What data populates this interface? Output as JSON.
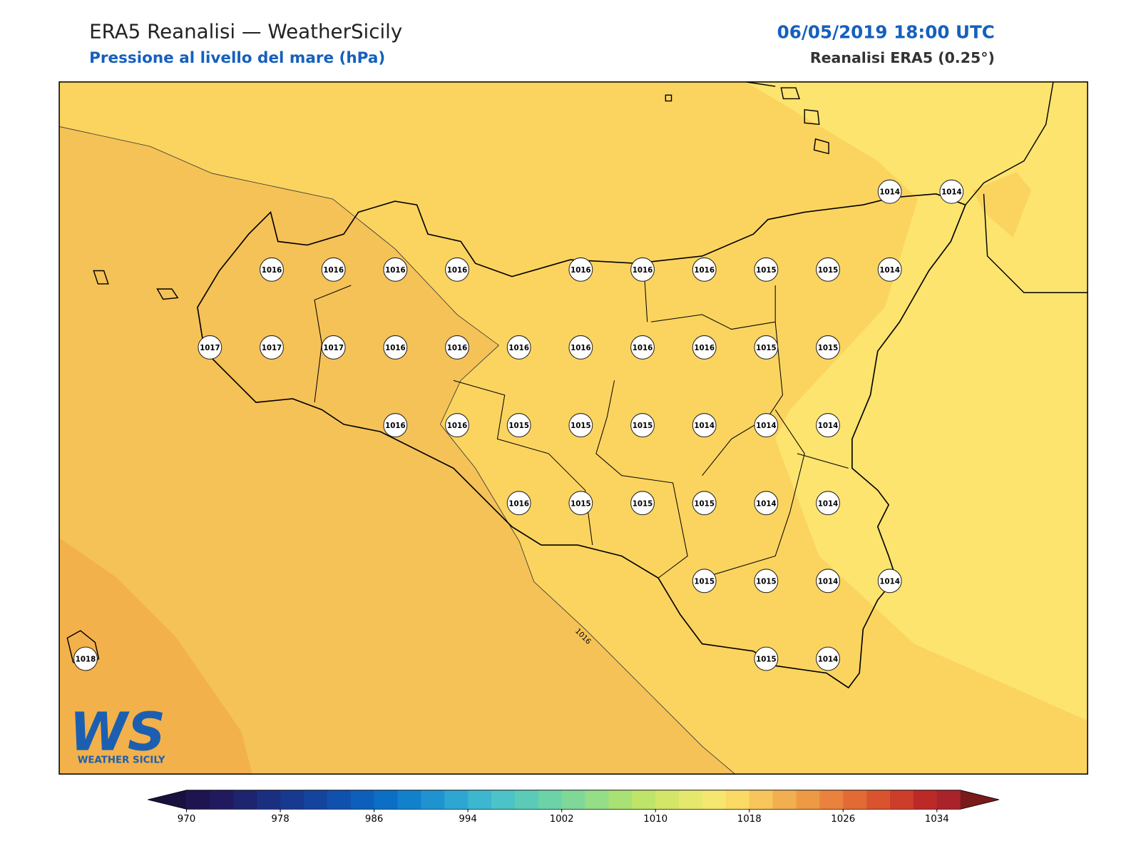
{
  "header": {
    "title": "ERA5 Reanalisi — WeatherSicily",
    "subtitle": "Pressione al livello del mare (hPa)",
    "datetime": "06/05/2019 18:00 UTC",
    "source": "Reanalisi ERA5 (0.25°)"
  },
  "map": {
    "contour_label": "1016",
    "stations": [
      1014,
      1014,
      1016,
      1016,
      1016,
      1016,
      1016,
      1016,
      1016,
      1015,
      1015,
      1014,
      1017,
      1017,
      1017,
      1016,
      1016,
      1016,
      1016,
      1016,
      1016,
      1015,
      1015,
      1016,
      1016,
      1015,
      1015,
      1015,
      1014,
      1014,
      1014,
      1016,
      1015,
      1015,
      1015,
      1014,
      1014,
      1015,
      1015,
      1014,
      1014,
      1018,
      1015,
      1014
    ]
  },
  "logo": {
    "mark": "WS",
    "name": "WEATHER SICILY"
  },
  "colorbar": {
    "lim": [
      970,
      1036
    ],
    "ticks": [
      970,
      978,
      986,
      994,
      1002,
      1010,
      1018,
      1026,
      1034
    ],
    "colors": [
      "#1e1450",
      "#211a5e",
      "#1f246e",
      "#1b2f80",
      "#17398f",
      "#14449e",
      "#1051ad",
      "#0d5fbb",
      "#0c6fc6",
      "#1281cc",
      "#1f93d0",
      "#2ea6d2",
      "#3db7d0",
      "#4cc3c6",
      "#5bcbb8",
      "#6cd2a8",
      "#80d898",
      "#95dd86",
      "#aae174",
      "#bfe46a",
      "#d3e668",
      "#e6e86e",
      "#f5e66f",
      "#fbd965",
      "#f7c55b",
      "#f2af50",
      "#ee9a45",
      "#e9823c",
      "#e26a34",
      "#d9542e",
      "#cc3d2a",
      "#bb2a27",
      "#a9232a"
    ],
    "extend_colors": [
      "#1a1040",
      "#7a1a1a"
    ]
  }
}
